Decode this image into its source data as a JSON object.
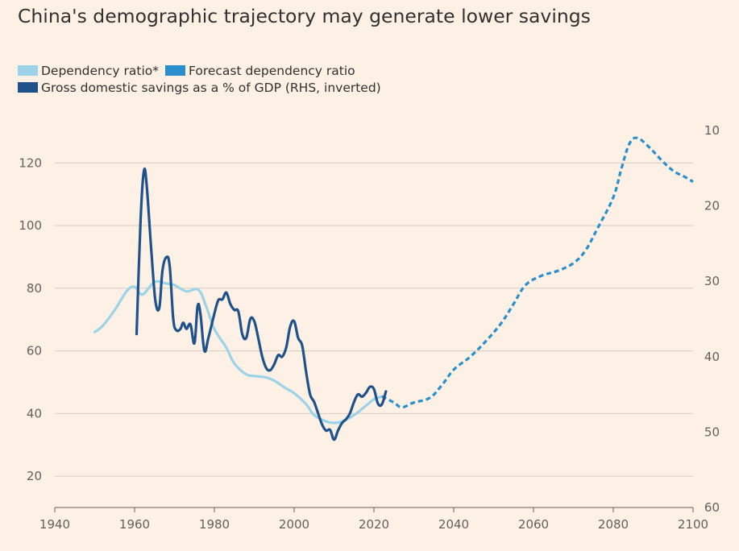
{
  "title": "China's demographic trajectory may generate lower savings",
  "legend": [
    {
      "label": "Dependency ratio*",
      "color": "#9dd3e8"
    },
    {
      "label": "Forecast dependency ratio",
      "color": "#2a8fcc"
    },
    {
      "label": "Gross domestic savings as a % of GDP (RHS, inverted)",
      "color": "#1f528a"
    }
  ],
  "chart_data": {
    "type": "line",
    "title": "China's demographic trajectory may generate lower savings",
    "xlim": [
      1940,
      2100
    ],
    "x_ticks": [
      1940,
      1960,
      1980,
      2000,
      2020,
      2040,
      2060,
      2080,
      2100
    ],
    "ylim_left": [
      10,
      140
    ],
    "y_ticks_left": [
      20,
      40,
      60,
      80,
      100,
      120
    ],
    "ylim_right_inverted": [
      10,
      60
    ],
    "y_ticks_right": [
      10,
      20,
      30,
      40,
      50,
      60
    ],
    "grid": "horizontal",
    "legend_position": "top-left",
    "series": [
      {
        "name": "Dependency ratio*",
        "axis": "left",
        "color": "#9dd3e8",
        "style": "solid",
        "points": [
          [
            1950,
            66
          ],
          [
            1952,
            68
          ],
          [
            1955,
            73
          ],
          [
            1958,
            79
          ],
          [
            1960,
            80.5
          ],
          [
            1962,
            78
          ],
          [
            1965,
            82
          ],
          [
            1968,
            81.5
          ],
          [
            1970,
            81
          ],
          [
            1973,
            79
          ],
          [
            1976,
            79.5
          ],
          [
            1978,
            74
          ],
          [
            1980,
            67
          ],
          [
            1983,
            61
          ],
          [
            1985,
            56
          ],
          [
            1988,
            52.5
          ],
          [
            1990,
            52
          ],
          [
            1993,
            51.5
          ],
          [
            1995,
            50.5
          ],
          [
            1998,
            48
          ],
          [
            2000,
            46.5
          ],
          [
            2003,
            43
          ],
          [
            2005,
            39.5
          ],
          [
            2008,
            37.5
          ],
          [
            2010,
            37
          ],
          [
            2012,
            37.5
          ],
          [
            2015,
            39.5
          ],
          [
            2018,
            42.5
          ],
          [
            2020,
            44.5
          ],
          [
            2022,
            45.5
          ]
        ]
      },
      {
        "name": "Forecast dependency ratio",
        "axis": "left",
        "color": "#2a8fcc",
        "style": "dashed",
        "points": [
          [
            2022,
            45.5
          ],
          [
            2025,
            43.5
          ],
          [
            2027,
            42
          ],
          [
            2030,
            43.5
          ],
          [
            2034,
            45
          ],
          [
            2037,
            49
          ],
          [
            2040,
            54
          ],
          [
            2044,
            58
          ],
          [
            2048,
            63
          ],
          [
            2052,
            69
          ],
          [
            2055,
            75
          ],
          [
            2058,
            81
          ],
          [
            2062,
            84
          ],
          [
            2066,
            85.5
          ],
          [
            2070,
            88
          ],
          [
            2073,
            92
          ],
          [
            2076,
            99
          ],
          [
            2080,
            109
          ],
          [
            2082,
            118
          ],
          [
            2084,
            126
          ],
          [
            2086,
            128
          ],
          [
            2089,
            125
          ],
          [
            2092,
            121
          ],
          [
            2095,
            117.5
          ],
          [
            2098,
            115.5
          ],
          [
            2100,
            114
          ]
        ]
      },
      {
        "name": "Gross domestic savings as a % of GDP (RHS, inverted)",
        "axis": "right",
        "color": "#1f528a",
        "style": "solid",
        "points": [
          [
            1960.5,
            37
          ],
          [
            1961.5,
            22
          ],
          [
            1962.3,
            15.5
          ],
          [
            1963,
            17
          ],
          [
            1964.2,
            26
          ],
          [
            1965.2,
            32.5
          ],
          [
            1966.2,
            33.5
          ],
          [
            1967,
            28.5
          ],
          [
            1968,
            26.8
          ],
          [
            1968.8,
            28
          ],
          [
            1969.7,
            35
          ],
          [
            1970.5,
            36.5
          ],
          [
            1971.5,
            36.3
          ],
          [
            1972.2,
            35.5
          ],
          [
            1973,
            36.3
          ],
          [
            1974,
            35.7
          ],
          [
            1975,
            38.2
          ],
          [
            1975.8,
            33.3
          ],
          [
            1976.5,
            34.3
          ],
          [
            1977.5,
            39.2
          ],
          [
            1978.5,
            37.5
          ],
          [
            1980,
            34.3
          ],
          [
            1981,
            32.5
          ],
          [
            1982,
            32.4
          ],
          [
            1983,
            31.5
          ],
          [
            1984,
            33
          ],
          [
            1985,
            33.8
          ],
          [
            1986,
            34
          ],
          [
            1987,
            37
          ],
          [
            1988,
            37.5
          ],
          [
            1989,
            35
          ],
          [
            1990,
            35.3
          ],
          [
            1991,
            37.5
          ],
          [
            1992,
            40
          ],
          [
            1993,
            41.5
          ],
          [
            1994,
            41.8
          ],
          [
            1995,
            41
          ],
          [
            1996,
            39.8
          ],
          [
            1997,
            40
          ],
          [
            1998,
            38.8
          ],
          [
            1999,
            36
          ],
          [
            2000,
            35.3
          ],
          [
            2001,
            37.5
          ],
          [
            2002,
            38.5
          ],
          [
            2003,
            42
          ],
          [
            2004,
            45
          ],
          [
            2005,
            46
          ],
          [
            2006,
            47.5
          ],
          [
            2007,
            49
          ],
          [
            2008,
            49.8
          ],
          [
            2009,
            49.7
          ],
          [
            2010,
            51
          ],
          [
            2011,
            49.8
          ],
          [
            2012,
            48.8
          ],
          [
            2013,
            48.3
          ],
          [
            2014,
            47.5
          ],
          [
            2015,
            46
          ],
          [
            2016,
            45
          ],
          [
            2017,
            45.3
          ],
          [
            2018,
            44.8
          ],
          [
            2019,
            44
          ],
          [
            2020,
            44.3
          ],
          [
            2021,
            46.2
          ],
          [
            2022,
            46.3
          ],
          [
            2023,
            44.6
          ]
        ]
      }
    ]
  }
}
